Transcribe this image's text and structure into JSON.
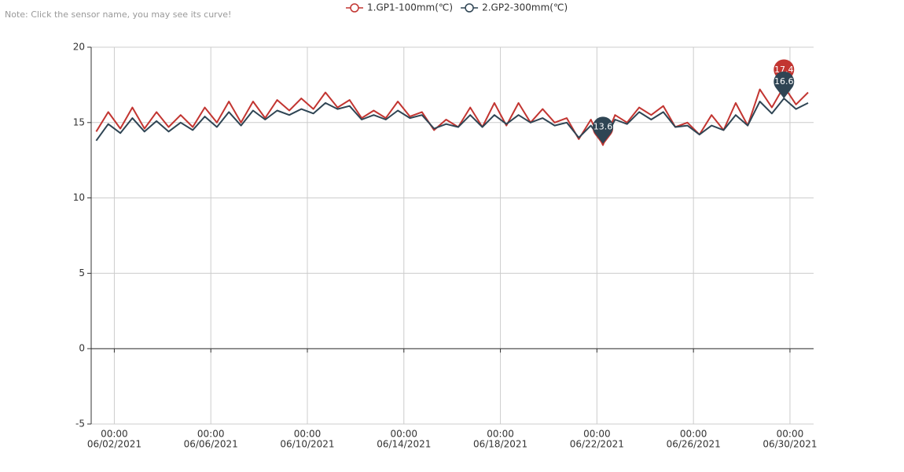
{
  "chart_data": {
    "type": "line",
    "note": "Note: Click the sensor name, you may see its curve!",
    "x": [
      "06/01/2021 06:00",
      "06/01/2021 18:00",
      "06/02/2021 06:00",
      "06/02/2021 18:00",
      "06/03/2021 06:00",
      "06/03/2021 18:00",
      "06/04/2021 06:00",
      "06/04/2021 18:00",
      "06/05/2021 06:00",
      "06/05/2021 18:00",
      "06/06/2021 06:00",
      "06/06/2021 18:00",
      "06/07/2021 06:00",
      "06/07/2021 18:00",
      "06/08/2021 06:00",
      "06/08/2021 18:00",
      "06/09/2021 06:00",
      "06/09/2021 18:00",
      "06/10/2021 06:00",
      "06/10/2021 18:00",
      "06/11/2021 06:00",
      "06/11/2021 18:00",
      "06/12/2021 06:00",
      "06/12/2021 18:00",
      "06/13/2021 06:00",
      "06/13/2021 18:00",
      "06/14/2021 06:00",
      "06/14/2021 18:00",
      "06/15/2021 06:00",
      "06/15/2021 18:00",
      "06/16/2021 06:00",
      "06/16/2021 18:00",
      "06/17/2021 06:00",
      "06/17/2021 18:00",
      "06/18/2021 06:00",
      "06/18/2021 18:00",
      "06/19/2021 06:00",
      "06/19/2021 18:00",
      "06/20/2021 06:00",
      "06/20/2021 18:00",
      "06/21/2021 06:00",
      "06/21/2021 18:00",
      "06/22/2021 06:00",
      "06/22/2021 18:00",
      "06/23/2021 06:00",
      "06/23/2021 18:00",
      "06/24/2021 06:00",
      "06/24/2021 18:00",
      "06/25/2021 06:00",
      "06/25/2021 18:00",
      "06/26/2021 06:00",
      "06/26/2021 18:00",
      "06/27/2021 06:00",
      "06/27/2021 18:00",
      "06/28/2021 06:00",
      "06/28/2021 18:00",
      "06/29/2021 06:00",
      "06/29/2021 18:00",
      "06/30/2021 06:00",
      "06/30/2021 18:00"
    ],
    "series": [
      {
        "name": "1.GP1-100mm(℃)",
        "color": "#c23531",
        "values": [
          14.4,
          15.7,
          14.6,
          16.0,
          14.6,
          15.7,
          14.7,
          15.5,
          14.7,
          16.0,
          15.0,
          16.4,
          15.0,
          16.4,
          15.3,
          16.5,
          15.8,
          16.6,
          15.9,
          17.0,
          16.0,
          16.5,
          15.3,
          15.8,
          15.3,
          16.4,
          15.4,
          15.7,
          14.5,
          15.2,
          14.7,
          16.0,
          14.7,
          16.3,
          14.8,
          16.3,
          15.0,
          15.9,
          15.0,
          15.3,
          13.9,
          15.2,
          13.5,
          15.5,
          15.0,
          16.0,
          15.5,
          16.1,
          14.7,
          15.0,
          14.2,
          15.5,
          14.5,
          16.3,
          14.8,
          17.2,
          16.0,
          17.4,
          16.2,
          17.0
        ]
      },
      {
        "name": "2.GP2-300mm(℃)",
        "color": "#2f4554",
        "values": [
          13.8,
          14.9,
          14.3,
          15.3,
          14.4,
          15.1,
          14.4,
          15.0,
          14.5,
          15.4,
          14.7,
          15.7,
          14.8,
          15.8,
          15.2,
          15.8,
          15.5,
          15.9,
          15.6,
          16.3,
          15.9,
          16.1,
          15.2,
          15.5,
          15.2,
          15.8,
          15.3,
          15.5,
          14.6,
          14.9,
          14.7,
          15.5,
          14.7,
          15.5,
          14.9,
          15.5,
          15.0,
          15.3,
          14.8,
          15.0,
          14.0,
          14.8,
          13.6,
          15.2,
          14.9,
          15.7,
          15.2,
          15.7,
          14.7,
          14.8,
          14.2,
          14.8,
          14.5,
          15.5,
          14.8,
          16.4,
          15.6,
          16.6,
          15.9,
          16.3
        ]
      }
    ],
    "xlim": [
      "06/01/2021 01:00",
      "06/30/2021 23:30"
    ],
    "xticks": [
      {
        "value": "06/02/2021 00:00",
        "label": [
          "00:00",
          "06/02/2021"
        ]
      },
      {
        "value": "06/06/2021 00:00",
        "label": [
          "00:00",
          "06/06/2021"
        ]
      },
      {
        "value": "06/10/2021 00:00",
        "label": [
          "00:00",
          "06/10/2021"
        ]
      },
      {
        "value": "06/14/2021 00:00",
        "label": [
          "00:00",
          "06/14/2021"
        ]
      },
      {
        "value": "06/18/2021 00:00",
        "label": [
          "00:00",
          "06/18/2021"
        ]
      },
      {
        "value": "06/22/2021 00:00",
        "label": [
          "00:00",
          "06/22/2021"
        ]
      },
      {
        "value": "06/26/2021 00:00",
        "label": [
          "00:00",
          "06/26/2021"
        ]
      },
      {
        "value": "06/30/2021 00:00",
        "label": [
          "00:00",
          "06/30/2021"
        ]
      }
    ],
    "ylim": [
      -5,
      20
    ],
    "yticks": [
      -5,
      0,
      5,
      10,
      15,
      20
    ],
    "grid": true
  }
}
